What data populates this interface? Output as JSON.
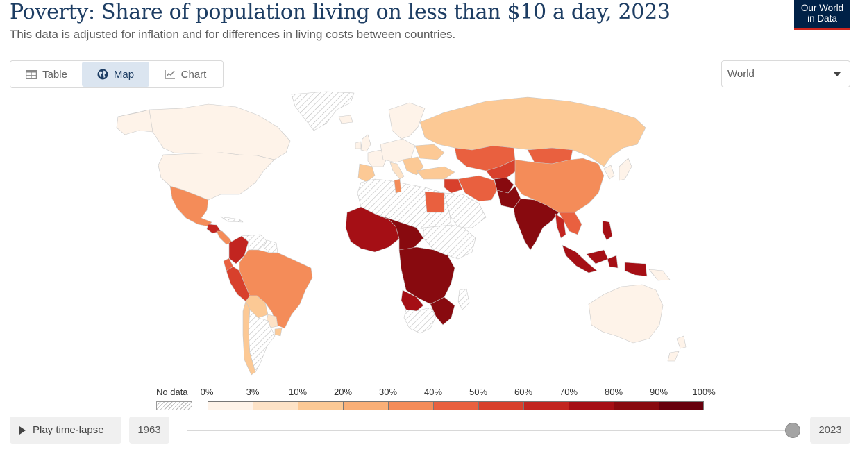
{
  "header": {
    "title": "Poverty: Share of population living on less than $10 a day, 2023",
    "subtitle": "This data is adjusted for inflation and for differences in living costs between countries."
  },
  "logo": {
    "line1": "Our World",
    "line2": "in Data"
  },
  "tabs": [
    {
      "label": "Table",
      "icon": "table-icon",
      "selected": false
    },
    {
      "label": "Map",
      "icon": "globe-icon",
      "selected": true
    },
    {
      "label": "Chart",
      "icon": "line-chart-icon",
      "selected": false
    }
  ],
  "region_select": {
    "value": "World"
  },
  "legend": {
    "no_data_label": "No data",
    "breaks": [
      "0%",
      "3%",
      "10%",
      "20%",
      "30%",
      "40%",
      "50%",
      "60%",
      "70%",
      "80%",
      "90%",
      "100%"
    ],
    "colors": [
      "#fef3e9",
      "#fde2c6",
      "#fcc995",
      "#f9af77",
      "#f48c59",
      "#e9603f",
      "#d8402c",
      "#c22520",
      "#a50f15",
      "#880a0f",
      "#67000d"
    ]
  },
  "timeline": {
    "play_label": "Play time-lapse",
    "start_year": "1963",
    "end_year": "2023",
    "selected_year": "2023"
  },
  "colors": {
    "title": "#1d3d63",
    "logo_bg": "#002147",
    "logo_accent": "#ce261e",
    "ocean": "#ffffff",
    "no_data_hatch": "#b8b8b8"
  }
}
